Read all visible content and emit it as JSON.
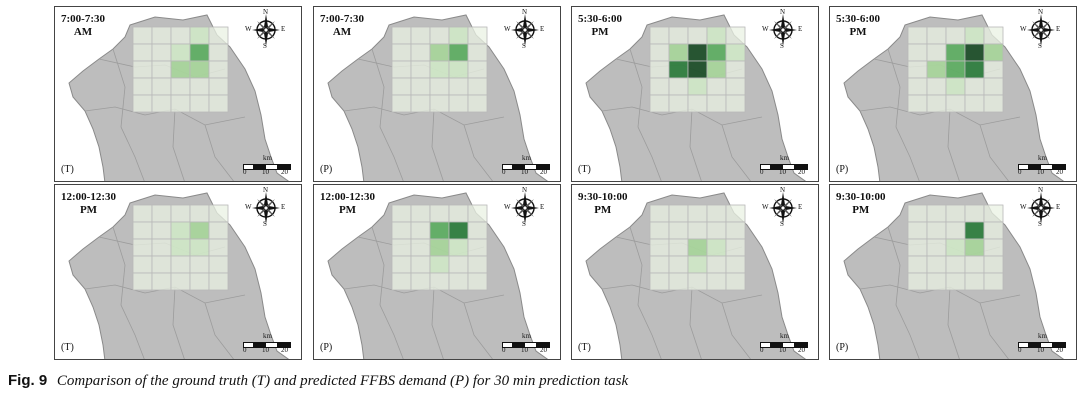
{
  "colors": {
    "land": "#bdbdbd",
    "land_stroke": "#8a8a8a",
    "grid_line": "#b8b8b8",
    "cell_base": "#e9f2e3",
    "level_1": "#cfe6c6",
    "level_2": "#a8d49b",
    "level_3": "#5fad63",
    "level_4": "#2f7d3f",
    "level_5": "#1f4f2a"
  },
  "icons": {
    "compass": "compass-rose-icon"
  },
  "scale": {
    "unit": "km",
    "ticks": [
      "0",
      "10",
      "20"
    ]
  },
  "panels": [
    {
      "time_line1": "7:00-7:30",
      "time_line2": "AM",
      "tag": "(T)",
      "cells": [
        {
          "r": 1,
          "c": 3,
          "v": 3
        },
        {
          "r": 2,
          "c": 3,
          "v": 2
        },
        {
          "r": 2,
          "c": 2,
          "v": 2
        },
        {
          "r": 1,
          "c": 2,
          "v": 1
        },
        {
          "r": 0,
          "c": 3,
          "v": 1
        }
      ]
    },
    {
      "time_line1": "7:00-7:30",
      "time_line2": "AM",
      "tag": "(P)",
      "cells": [
        {
          "r": 1,
          "c": 3,
          "v": 3
        },
        {
          "r": 1,
          "c": 2,
          "v": 2
        },
        {
          "r": 2,
          "c": 2,
          "v": 1
        },
        {
          "r": 2,
          "c": 3,
          "v": 1
        },
        {
          "r": 0,
          "c": 3,
          "v": 1
        }
      ]
    },
    {
      "time_line1": "5:30-6:00",
      "time_line2": "PM",
      "tag": "(T)",
      "cells": [
        {
          "r": 1,
          "c": 2,
          "v": 5
        },
        {
          "r": 2,
          "c": 2,
          "v": 5
        },
        {
          "r": 2,
          "c": 1,
          "v": 4
        },
        {
          "r": 1,
          "c": 3,
          "v": 3
        },
        {
          "r": 2,
          "c": 3,
          "v": 2
        },
        {
          "r": 1,
          "c": 1,
          "v": 2
        },
        {
          "r": 0,
          "c": 3,
          "v": 1
        },
        {
          "r": 3,
          "c": 2,
          "v": 1
        },
        {
          "r": 1,
          "c": 4,
          "v": 1
        }
      ]
    },
    {
      "time_line1": "5:30-6:00",
      "time_line2": "PM",
      "tag": "(P)",
      "cells": [
        {
          "r": 1,
          "c": 3,
          "v": 5
        },
        {
          "r": 2,
          "c": 3,
          "v": 4
        },
        {
          "r": 1,
          "c": 2,
          "v": 3
        },
        {
          "r": 2,
          "c": 2,
          "v": 3
        },
        {
          "r": 2,
          "c": 1,
          "v": 2
        },
        {
          "r": 1,
          "c": 4,
          "v": 2
        },
        {
          "r": 0,
          "c": 3,
          "v": 1
        },
        {
          "r": 3,
          "c": 2,
          "v": 1
        }
      ]
    },
    {
      "time_line1": "12:00-12:30",
      "time_line2": "PM",
      "tag": "(T)",
      "cells": [
        {
          "r": 1,
          "c": 3,
          "v": 2
        },
        {
          "r": 2,
          "c": 3,
          "v": 1
        },
        {
          "r": 1,
          "c": 2,
          "v": 1
        },
        {
          "r": 2,
          "c": 2,
          "v": 1
        }
      ]
    },
    {
      "time_line1": "12:00-12:30",
      "time_line2": "PM",
      "tag": "(P)",
      "cells": [
        {
          "r": 1,
          "c": 3,
          "v": 4
        },
        {
          "r": 1,
          "c": 2,
          "v": 3
        },
        {
          "r": 2,
          "c": 2,
          "v": 2
        },
        {
          "r": 2,
          "c": 3,
          "v": 1
        },
        {
          "r": 3,
          "c": 2,
          "v": 1
        }
      ]
    },
    {
      "time_line1": "9:30-10:00",
      "time_line2": "PM",
      "tag": "(T)",
      "cells": [
        {
          "r": 2,
          "c": 2,
          "v": 2
        },
        {
          "r": 2,
          "c": 3,
          "v": 1
        },
        {
          "r": 3,
          "c": 2,
          "v": 1
        }
      ]
    },
    {
      "time_line1": "9:30-10:00",
      "time_line2": "PM",
      "tag": "(P)",
      "cells": [
        {
          "r": 1,
          "c": 3,
          "v": 4
        },
        {
          "r": 2,
          "c": 3,
          "v": 2
        },
        {
          "r": 2,
          "c": 2,
          "v": 1
        }
      ]
    }
  ],
  "caption": {
    "label": "Fig. 9",
    "text": "Comparison of the ground truth (T) and predicted FFBS demand (P) for 30 min prediction task"
  }
}
